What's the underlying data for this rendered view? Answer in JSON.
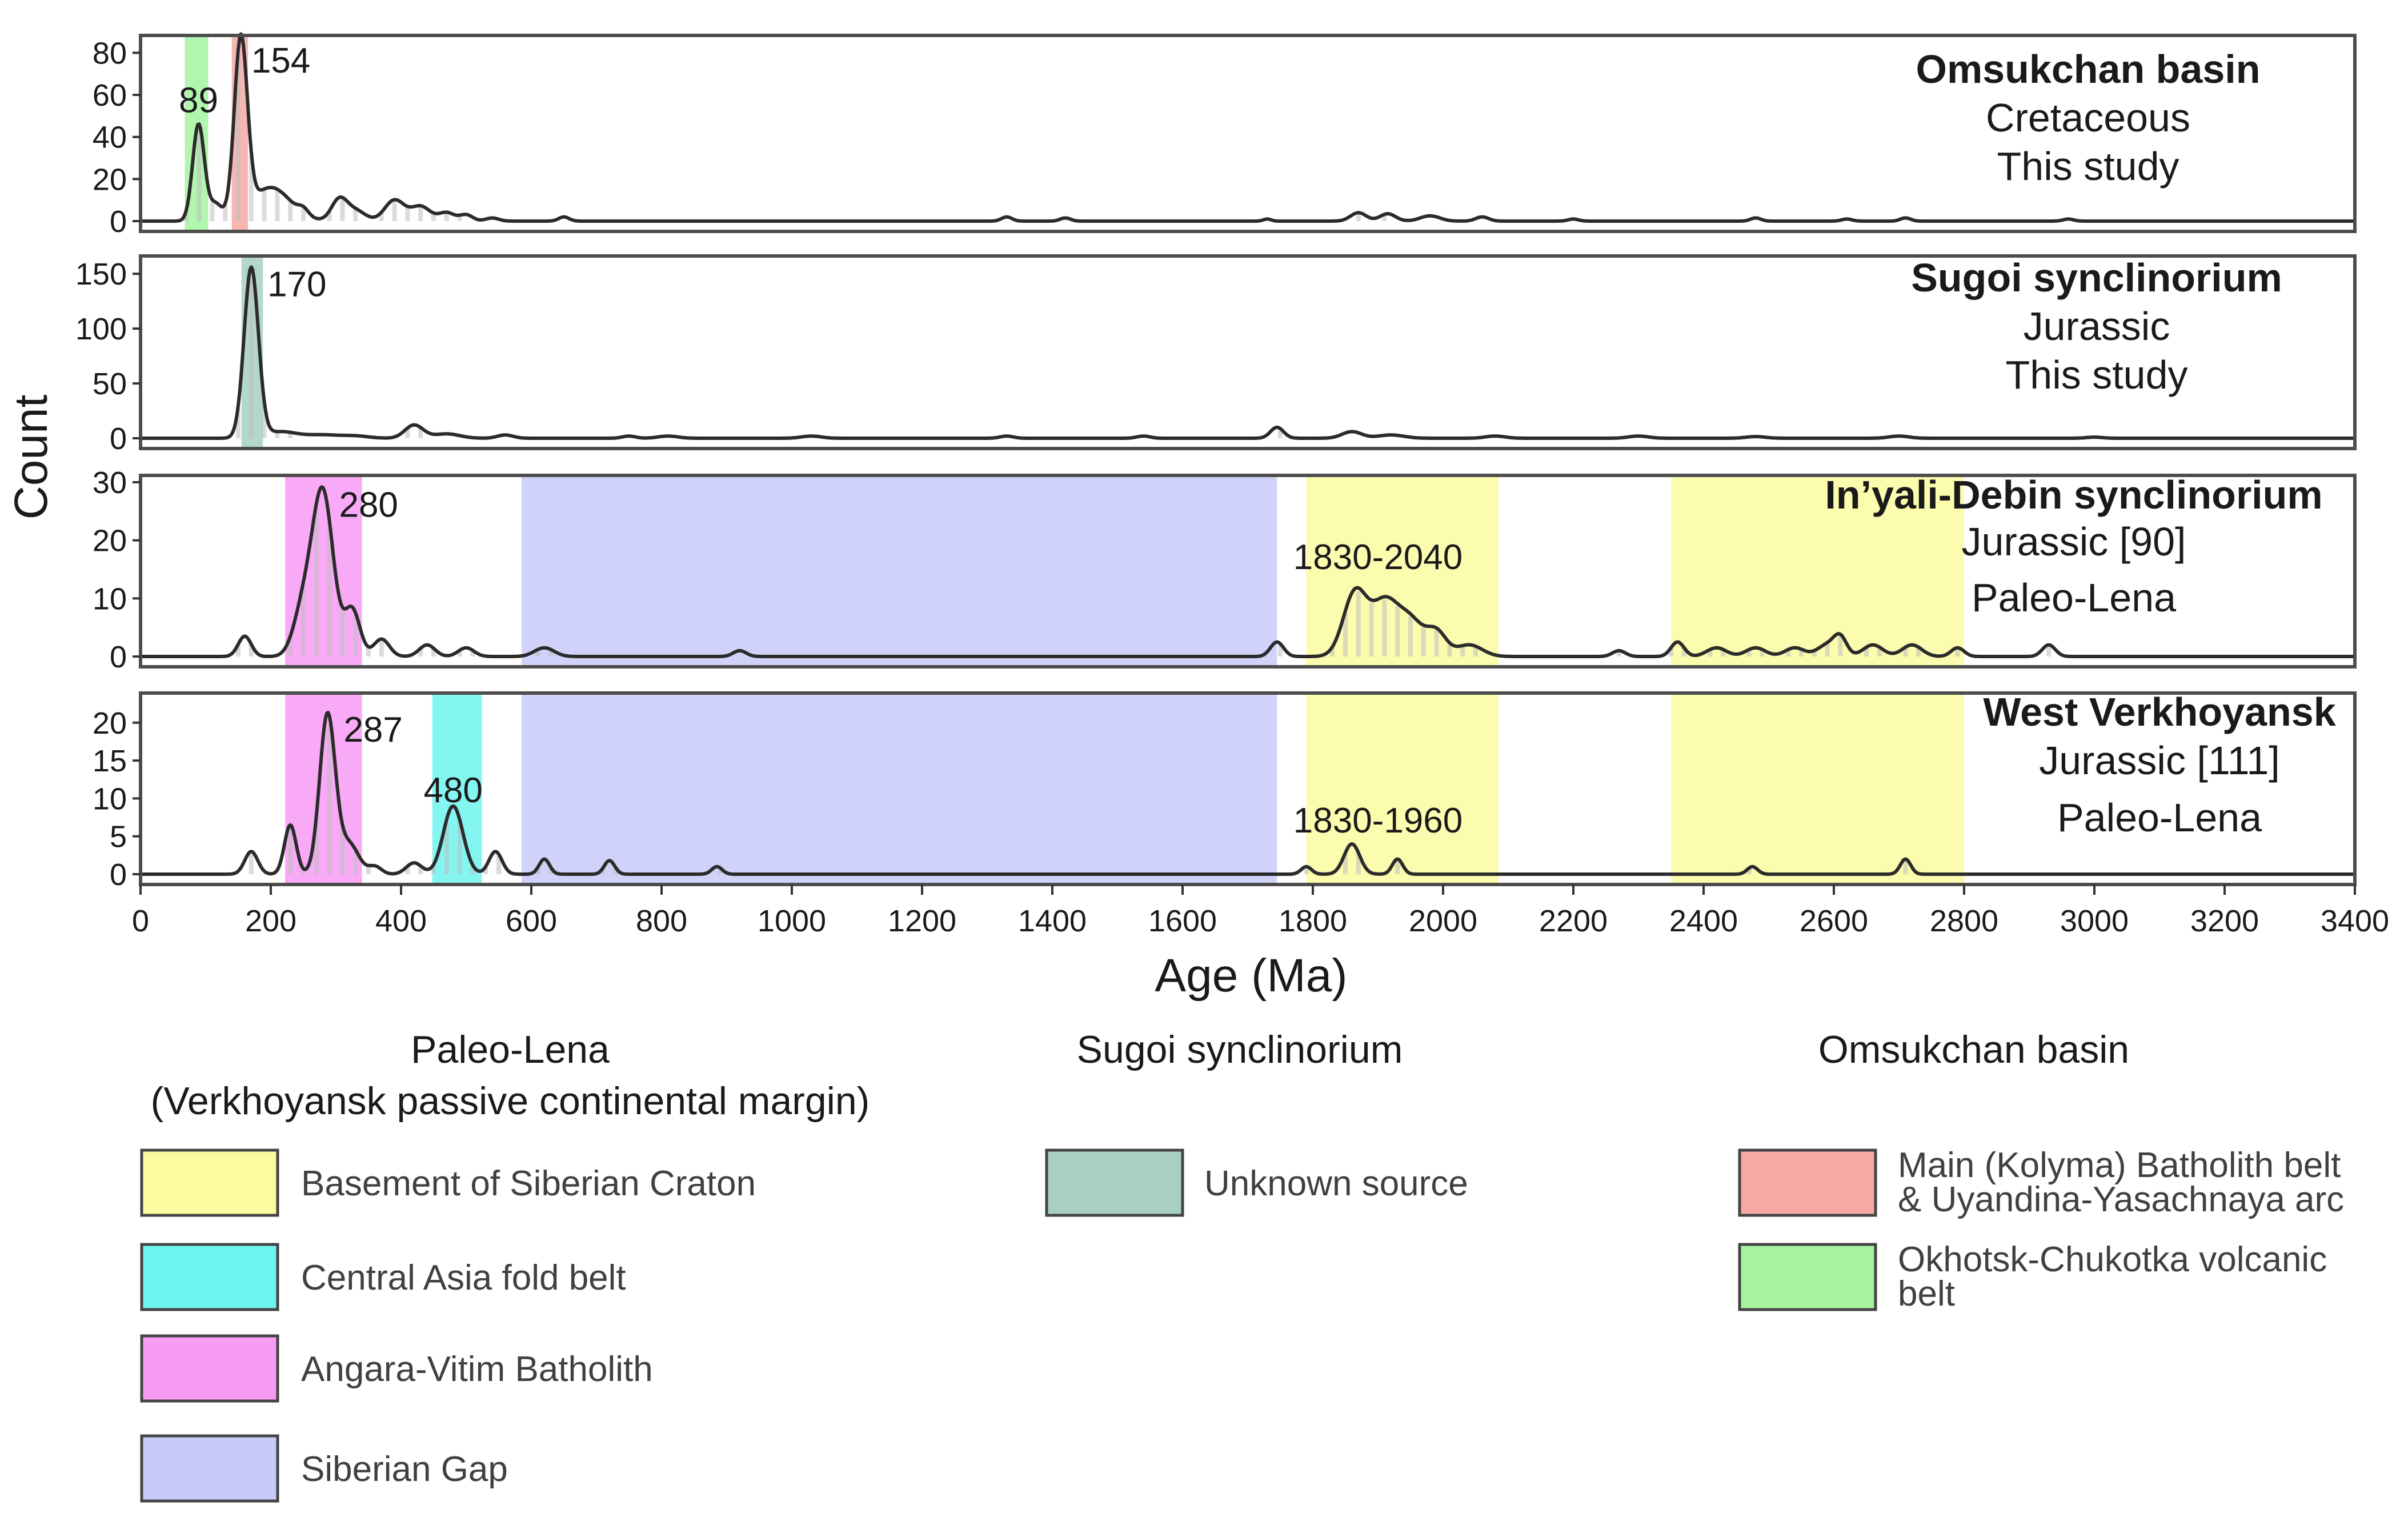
{
  "chart_data": {
    "type": "area",
    "ylabel": "Count",
    "xlabel": "Age (Ma)",
    "xlim": [
      0,
      3400
    ],
    "x_ticks": [
      0,
      200,
      400,
      600,
      800,
      1000,
      1200,
      1400,
      1600,
      1800,
      2000,
      2200,
      2400,
      2600,
      2800,
      3000,
      3200,
      3400
    ],
    "colors": {
      "basement": "#fbfba0",
      "central_asia": "#6ef5f0",
      "angara": "#f79bf5",
      "siberian_gap": "#c8caf8",
      "unknown": "#a7d0c1",
      "main_batholith": "#f7a9a6",
      "okhotsk": "#a5f3a0",
      "line": "#2b2b2b",
      "frame": "#4d4d4d"
    },
    "panels": [
      {
        "id": "omsukchan",
        "title": "Omsukchan basin",
        "subtitle": "Cretaceous",
        "note": "This study",
        "ylim": [
          0,
          85
        ],
        "yticks": [
          0,
          20,
          40,
          60,
          80
        ],
        "bands": [
          {
            "from": 68,
            "to": 104,
            "color_key": "okhotsk"
          },
          {
            "from": 140,
            "to": 165,
            "color_key": "main_batholith"
          }
        ],
        "peaks": [
          {
            "x": 89,
            "y": 46,
            "label": "89",
            "w": 9
          },
          {
            "x": 154,
            "y": 84,
            "label": "154",
            "w": 10
          }
        ],
        "bumps": [
          [
            115,
            8,
            10
          ],
          [
            200,
            16,
            30
          ],
          [
            250,
            3,
            8
          ],
          [
            305,
            10,
            12
          ],
          [
            330,
            5,
            15
          ],
          [
            390,
            10,
            15
          ],
          [
            430,
            7,
            15
          ],
          [
            470,
            4,
            12
          ],
          [
            500,
            3,
            10
          ],
          [
            540,
            1.5,
            10
          ],
          [
            650,
            2,
            8
          ],
          [
            1330,
            2,
            8
          ],
          [
            1420,
            1.5,
            8
          ],
          [
            1730,
            1,
            6
          ],
          [
            1870,
            4,
            12
          ],
          [
            1915,
            3.5,
            12
          ],
          [
            1980,
            2.5,
            15
          ],
          [
            2060,
            2,
            10
          ],
          [
            2200,
            1,
            8
          ],
          [
            2480,
            1.5,
            8
          ],
          [
            2620,
            1,
            8
          ],
          [
            2710,
            1.5,
            8
          ],
          [
            2960,
            1,
            8
          ]
        ],
        "data_labels": [
          {
            "text": "89",
            "x": 89,
            "y": 55
          },
          {
            "text": "154",
            "x": 154,
            "y": 76
          }
        ]
      },
      {
        "id": "sugoi",
        "title": "Sugoi synclinorium",
        "subtitle": "Jurassic",
        "note": "This study",
        "ylim": [
          0,
          160
        ],
        "yticks": [
          0,
          50,
          100,
          150
        ],
        "bands": [
          {
            "from": 155,
            "to": 188,
            "color_key": "unknown"
          }
        ],
        "peaks": [
          {
            "x": 170,
            "y": 155,
            "label": "170",
            "w": 11
          }
        ],
        "bumps": [
          [
            215,
            6,
            25
          ],
          [
            280,
            3,
            25
          ],
          [
            330,
            2,
            20
          ],
          [
            420,
            12,
            14
          ],
          [
            470,
            4,
            20
          ],
          [
            560,
            3,
            12
          ],
          [
            750,
            2,
            10
          ],
          [
            810,
            2,
            15
          ],
          [
            1030,
            2,
            15
          ],
          [
            1330,
            2,
            10
          ],
          [
            1540,
            2,
            10
          ],
          [
            1745,
            10,
            10
          ],
          [
            1860,
            6,
            15
          ],
          [
            1920,
            3,
            20
          ],
          [
            2080,
            2,
            15
          ],
          [
            2300,
            2,
            15
          ],
          [
            2480,
            1.5,
            15
          ],
          [
            2700,
            2,
            15
          ],
          [
            3000,
            1,
            12
          ]
        ],
        "data_labels": [
          {
            "text": "170",
            "x": 170,
            "y": 140
          }
        ]
      },
      {
        "id": "inyali",
        "title": "In’yali-Debin synclinorium",
        "subtitle": "Jurassic [90]",
        "note": "Paleo-Lena",
        "ylim": [
          0,
          30
        ],
        "yticks": [
          0,
          10,
          20,
          30
        ],
        "bands": [
          {
            "from": 222,
            "to": 340,
            "color_key": "angara"
          },
          {
            "from": 585,
            "to": 1745,
            "color_key": "siberian_gap"
          },
          {
            "from": 1790,
            "to": 2085,
            "color_key": "basement"
          },
          {
            "from": 2350,
            "to": 2800,
            "color_key": "basement"
          }
        ],
        "peaks": [
          {
            "x": 280,
            "y": 28,
            "label": "280",
            "w": 16
          }
        ],
        "bumps": [
          [
            160,
            3.5,
            10
          ],
          [
            250,
            8,
            15
          ],
          [
            325,
            8,
            12
          ],
          [
            370,
            3,
            12
          ],
          [
            440,
            2,
            12
          ],
          [
            500,
            1.5,
            12
          ],
          [
            620,
            1.5,
            15
          ],
          [
            920,
            1,
            10
          ],
          [
            1745,
            2.5,
            10
          ],
          [
            1865,
            11,
            18
          ],
          [
            1910,
            9,
            20
          ],
          [
            1950,
            6,
            20
          ],
          [
            1990,
            4,
            15
          ],
          [
            2040,
            2,
            20
          ],
          [
            2270,
            1,
            10
          ],
          [
            2360,
            2.5,
            10
          ],
          [
            2420,
            1.5,
            15
          ],
          [
            2480,
            1.5,
            15
          ],
          [
            2540,
            1.5,
            15
          ],
          [
            2590,
            2,
            15
          ],
          [
            2610,
            3,
            10
          ],
          [
            2660,
            2,
            15
          ],
          [
            2720,
            2,
            15
          ],
          [
            2790,
            1.5,
            10
          ],
          [
            2930,
            2,
            10
          ]
        ],
        "data_labels": [
          {
            "text": "280",
            "x": 280,
            "y": 26
          },
          {
            "text": "1830-2040",
            "x": 1900,
            "y": 17
          }
        ]
      },
      {
        "id": "westverkhoyansk",
        "title": "West Verkhoyansk",
        "subtitle": "Jurassic [111]",
        "note": "Paleo-Lena",
        "ylim": [
          0,
          23
        ],
        "yticks": [
          0,
          5,
          10,
          15,
          20
        ],
        "bands": [
          {
            "from": 222,
            "to": 340,
            "color_key": "angara"
          },
          {
            "from": 448,
            "to": 524,
            "color_key": "central_asia"
          },
          {
            "from": 585,
            "to": 1745,
            "color_key": "siberian_gap"
          },
          {
            "from": 1790,
            "to": 2085,
            "color_key": "basement"
          },
          {
            "from": 2350,
            "to": 2800,
            "color_key": "basement"
          }
        ],
        "peaks": [
          {
            "x": 287,
            "y": 21,
            "label": "287",
            "w": 12
          },
          {
            "x": 480,
            "y": 9,
            "label": "480",
            "w": 15
          }
        ],
        "bumps": [
          [
            170,
            3,
            10
          ],
          [
            230,
            6.5,
            9
          ],
          [
            320,
            4,
            15
          ],
          [
            360,
            1,
            10
          ],
          [
            420,
            1.5,
            12
          ],
          [
            545,
            3,
            10
          ],
          [
            620,
            2,
            8
          ],
          [
            720,
            1.8,
            8
          ],
          [
            885,
            1,
            8
          ],
          [
            1790,
            1,
            8
          ],
          [
            1860,
            4,
            12
          ],
          [
            1930,
            2,
            8
          ],
          [
            2475,
            1,
            8
          ],
          [
            2710,
            2,
            8
          ]
        ],
        "data_labels": [
          {
            "text": "287",
            "x": 287,
            "y": 19
          },
          {
            "text": "480",
            "x": 480,
            "y": 11
          },
          {
            "text": "1830-1960",
            "x": 1900,
            "y": 7
          }
        ]
      }
    ],
    "legend": [
      {
        "heading": "Paleo-Lena",
        "subheading": "(Verkhoyansk passive continental margin)",
        "items": [
          {
            "label": "Basement of Siberian Craton",
            "color_key": "basement"
          },
          {
            "label": "Central Asia fold belt",
            "color_key": "central_asia"
          },
          {
            "label": "Angara-Vitim Batholith",
            "color_key": "angara"
          },
          {
            "label": "Siberian Gap",
            "color_key": "siberian_gap"
          }
        ]
      },
      {
        "heading": "Sugoi synclinorium",
        "items": [
          {
            "label": "Unknown source",
            "color_key": "unknown"
          }
        ]
      },
      {
        "heading": "Omsukchan basin",
        "items": [
          {
            "label": "Main (Kolyma) Batholith belt",
            "label2": "& Uyandina-Yasachnaya arc",
            "color_key": "main_batholith"
          },
          {
            "label": "Okhotsk-Chukotka volcanic",
            "label2": "belt",
            "color_key": "okhotsk"
          }
        ]
      }
    ]
  }
}
